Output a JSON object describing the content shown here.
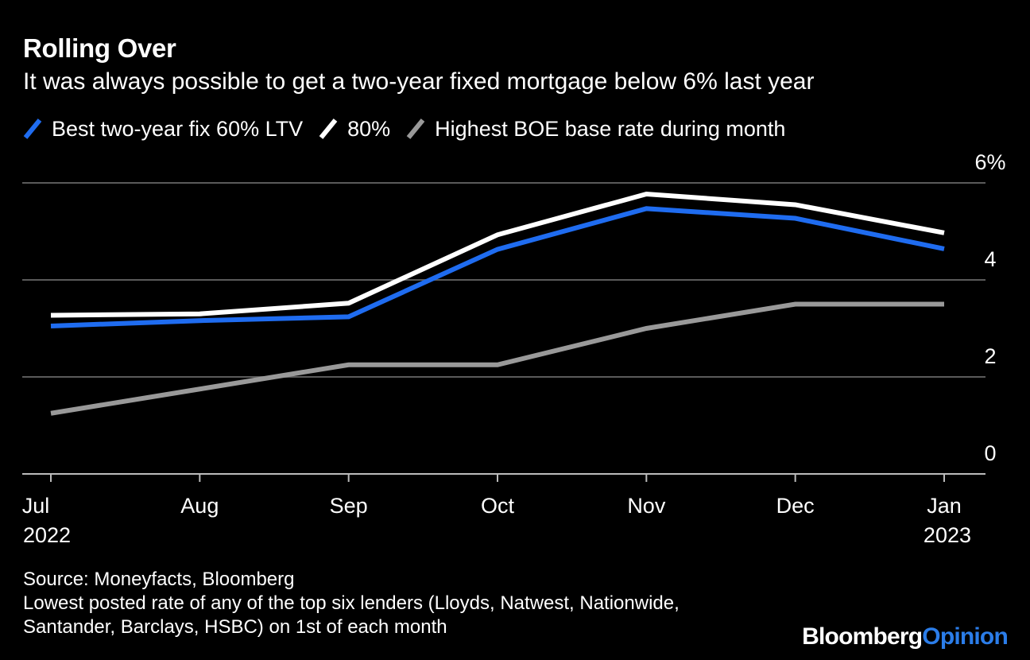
{
  "title": "Rolling Over",
  "subtitle": "It was always possible to get a two-year fixed mortgage below 6% last year",
  "source": "Source: Moneyfacts, Bloomberg",
  "note_line1": "Lowest posted rate of any of the top six lenders (Lloyds, Natwest, Nationwide,",
  "note_line2": "Santander, Barclays, HSBC) on 1st of each month",
  "brand": {
    "part1": "Bloomberg",
    "part2": "Opinion",
    "color2": "#2b7de9"
  },
  "chart_data": {
    "type": "line",
    "categories": [
      "Jul",
      "Aug",
      "Sep",
      "Oct",
      "Nov",
      "Dec",
      "Jan"
    ],
    "category_sublabels": [
      "2022",
      "",
      "",
      "",
      "",
      "",
      "2023"
    ],
    "series": [
      {
        "name": "Best two-year fix 60% LTV",
        "color": "#1f6cf0",
        "values": [
          3.05,
          3.16,
          3.24,
          4.63,
          5.47,
          5.27,
          4.64
        ]
      },
      {
        "name": "80%",
        "color": "#ffffff",
        "values": [
          3.27,
          3.3,
          3.52,
          4.93,
          5.77,
          5.55,
          4.97
        ]
      },
      {
        "name": "Highest BOE base rate during month",
        "color": "#999999",
        "values": [
          1.25,
          1.75,
          2.25,
          2.25,
          3.0,
          3.5,
          3.5
        ]
      }
    ],
    "yticks": [
      {
        "value": 0,
        "label": "0"
      },
      {
        "value": 2,
        "label": "2"
      },
      {
        "value": 4,
        "label": "4"
      },
      {
        "value": 6,
        "label": "6%"
      }
    ],
    "ylim": [
      0,
      6
    ],
    "grid": true,
    "legend_position": "top-left"
  }
}
